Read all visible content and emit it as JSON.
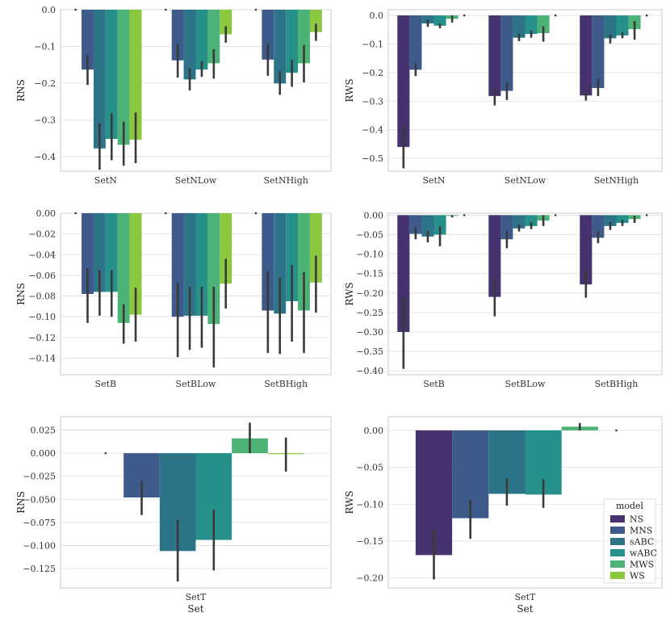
{
  "colors": {
    "NS": "#45326e",
    "MNS": "#3d5a8a",
    "sABC": "#2d7488",
    "wABC": "#26918a",
    "MWS": "#4db276",
    "WS": "#8cc83f"
  },
  "legend": {
    "title": "model",
    "entries": [
      "NS",
      "MNS",
      "sABC",
      "wABC",
      "MWS",
      "WS"
    ]
  },
  "chart_data": [
    {
      "type": "bar",
      "xlabel": "",
      "ylabel": "RNS",
      "ylim": [
        -0.44,
        0.0
      ],
      "yticks": [
        0.0,
        -0.1,
        -0.2,
        -0.3,
        -0.4
      ],
      "yticklabels": [
        "0.0",
        "−0.1",
        "−0.2",
        "−0.3",
        "−0.4"
      ],
      "categories": [
        "SetN",
        "SetNLow",
        "SetNHigh"
      ],
      "series": [
        {
          "name": "NS",
          "values": [
            0.0,
            0.0,
            0.0
          ],
          "err": [
            [
              0.0,
              0.0
            ],
            [
              0.0,
              0.0
            ],
            [
              0.0,
              0.0
            ]
          ]
        },
        {
          "name": "MNS",
          "values": [
            -0.163,
            -0.138,
            -0.136
          ],
          "err": [
            [
              -0.205,
              -0.122
            ],
            [
              -0.185,
              -0.093
            ],
            [
              -0.18,
              -0.092
            ]
          ]
        },
        {
          "name": "sABC",
          "values": [
            -0.378,
            -0.19,
            -0.201
          ],
          "err": [
            [
              -0.436,
              -0.31
            ],
            [
              -0.22,
              -0.16
            ],
            [
              -0.232,
              -0.168
            ]
          ]
        },
        {
          "name": "wABC",
          "values": [
            -0.352,
            -0.163,
            -0.172
          ],
          "err": [
            [
              -0.41,
              -0.282
            ],
            [
              -0.183,
              -0.14
            ],
            [
              -0.21,
              -0.136
            ]
          ]
        },
        {
          "name": "MWS",
          "values": [
            -0.368,
            -0.146,
            -0.146
          ],
          "err": [
            [
              -0.425,
              -0.305
            ],
            [
              -0.188,
              -0.108
            ],
            [
              -0.198,
              -0.096
            ]
          ]
        },
        {
          "name": "WS",
          "values": [
            -0.354,
            -0.067,
            -0.061
          ],
          "err": [
            [
              -0.418,
              -0.28
            ],
            [
              -0.09,
              -0.045
            ],
            [
              -0.085,
              -0.038
            ]
          ]
        }
      ]
    },
    {
      "type": "bar",
      "xlabel": "",
      "ylabel": "RWS",
      "ylim": [
        -0.545,
        0.02
      ],
      "yticks": [
        0.0,
        -0.1,
        -0.2,
        -0.3,
        -0.4,
        -0.5
      ],
      "yticklabels": [
        "0.0",
        "−0.1",
        "−0.2",
        "−0.3",
        "−0.4",
        "−0.5"
      ],
      "categories": [
        "SetN",
        "SetNLow",
        "SetNHigh"
      ],
      "series": [
        {
          "name": "NS",
          "values": [
            -0.46,
            -0.282,
            -0.28
          ],
          "err": [
            [
              -0.535,
              -0.385
            ],
            [
              -0.315,
              -0.252
            ],
            [
              -0.298,
              -0.26
            ]
          ]
        },
        {
          "name": "MNS",
          "values": [
            -0.19,
            -0.264,
            -0.254
          ],
          "err": [
            [
              -0.212,
              -0.168
            ],
            [
              -0.296,
              -0.234
            ],
            [
              -0.282,
              -0.222
            ]
          ]
        },
        {
          "name": "sABC",
          "values": [
            -0.028,
            -0.078,
            -0.08
          ],
          "err": [
            [
              -0.04,
              -0.015
            ],
            [
              -0.09,
              -0.064
            ],
            [
              -0.098,
              -0.066
            ]
          ]
        },
        {
          "name": "wABC",
          "values": [
            -0.036,
            -0.065,
            -0.07
          ],
          "err": [
            [
              -0.045,
              -0.028
            ],
            [
              -0.078,
              -0.052
            ],
            [
              -0.08,
              -0.058
            ]
          ]
        },
        {
          "name": "MWS",
          "values": [
            -0.012,
            -0.062,
            -0.048
          ],
          "err": [
            [
              -0.025,
              0.0
            ],
            [
              -0.092,
              -0.038
            ],
            [
              -0.085,
              -0.02
            ]
          ]
        },
        {
          "name": "WS",
          "values": [
            0.0,
            0.0,
            0.0
          ],
          "err": [
            [
              0.0,
              0.0
            ],
            [
              0.0,
              0.0
            ],
            [
              0.0,
              0.0
            ]
          ]
        }
      ]
    },
    {
      "type": "bar",
      "xlabel": "",
      "ylabel": "RNS",
      "ylim": [
        -0.156,
        0.0
      ],
      "yticks": [
        0.0,
        -0.02,
        -0.04,
        -0.06,
        -0.08,
        -0.1,
        -0.12,
        -0.14
      ],
      "yticklabels": [
        "0.00",
        "−0.02",
        "−0.04",
        "−0.06",
        "−0.08",
        "−0.10",
        "−0.12",
        "−0.14"
      ],
      "categories": [
        "SetB",
        "SetBLow",
        "SetBHigh"
      ],
      "series": [
        {
          "name": "NS",
          "values": [
            0.0,
            0.0,
            0.0
          ],
          "err": [
            [
              0.0,
              0.0
            ],
            [
              0.0,
              0.0
            ],
            [
              0.0,
              0.0
            ]
          ]
        },
        {
          "name": "MNS",
          "values": [
            -0.078,
            -0.1,
            -0.094
          ],
          "err": [
            [
              -0.106,
              -0.053
            ],
            [
              -0.139,
              -0.067
            ],
            [
              -0.135,
              -0.056
            ]
          ]
        },
        {
          "name": "sABC",
          "values": [
            -0.076,
            -0.099,
            -0.097
          ],
          "err": [
            [
              -0.099,
              -0.055
            ],
            [
              -0.132,
              -0.071
            ],
            [
              -0.136,
              -0.062
            ]
          ]
        },
        {
          "name": "wABC",
          "values": [
            -0.076,
            -0.099,
            -0.085
          ],
          "err": [
            [
              -0.1,
              -0.055
            ],
            [
              -0.13,
              -0.071
            ],
            [
              -0.124,
              -0.05
            ]
          ]
        },
        {
          "name": "MWS",
          "values": [
            -0.106,
            -0.107,
            -0.094
          ],
          "err": [
            [
              -0.126,
              -0.088
            ],
            [
              -0.149,
              -0.071
            ],
            [
              -0.135,
              -0.057
            ]
          ]
        },
        {
          "name": "WS",
          "values": [
            -0.098,
            -0.068,
            -0.067
          ],
          "err": [
            [
              -0.124,
              -0.072
            ],
            [
              -0.092,
              -0.044
            ],
            [
              -0.096,
              -0.041
            ]
          ]
        }
      ]
    },
    {
      "type": "bar",
      "xlabel": "",
      "ylabel": "RWS",
      "ylim": [
        -0.41,
        0.005
      ],
      "yticks": [
        0.0,
        -0.05,
        -0.1,
        -0.15,
        -0.2,
        -0.25,
        -0.3,
        -0.35,
        -0.4
      ],
      "yticklabels": [
        "0.00",
        "−0.05",
        "−0.10",
        "−0.15",
        "−0.20",
        "−0.25",
        "−0.30",
        "−0.35",
        "−0.40"
      ],
      "categories": [
        "SetB",
        "SetBLow",
        "SetBHigh"
      ],
      "series": [
        {
          "name": "NS",
          "values": [
            -0.3,
            -0.21,
            -0.178
          ],
          "err": [
            [
              -0.395,
              -0.21
            ],
            [
              -0.26,
              -0.16
            ],
            [
              -0.212,
              -0.14
            ]
          ]
        },
        {
          "name": "MNS",
          "values": [
            -0.048,
            -0.062,
            -0.058
          ],
          "err": [
            [
              -0.062,
              -0.03
            ],
            [
              -0.085,
              -0.04
            ],
            [
              -0.072,
              -0.042
            ]
          ]
        },
        {
          "name": "sABC",
          "values": [
            -0.055,
            -0.034,
            -0.028
          ],
          "err": [
            [
              -0.07,
              -0.04
            ],
            [
              -0.042,
              -0.024
            ],
            [
              -0.038,
              -0.018
            ]
          ]
        },
        {
          "name": "wABC",
          "values": [
            -0.05,
            -0.028,
            -0.02
          ],
          "err": [
            [
              -0.08,
              -0.028
            ],
            [
              -0.036,
              -0.018
            ],
            [
              -0.028,
              -0.012
            ]
          ]
        },
        {
          "name": "MWS",
          "values": [
            -0.002,
            -0.014,
            -0.01
          ],
          "err": [
            [
              -0.006,
              0.0
            ],
            [
              -0.028,
              0.0
            ],
            [
              -0.02,
              -0.002
            ]
          ]
        },
        {
          "name": "WS",
          "values": [
            0.0,
            0.0,
            0.0
          ],
          "err": [
            [
              0.0,
              0.0
            ],
            [
              0.0,
              0.0
            ],
            [
              0.0,
              0.0
            ]
          ]
        }
      ]
    },
    {
      "type": "bar",
      "xlabel": "Set",
      "ylabel": "RNS",
      "ylim": [
        -0.146,
        0.0395
      ],
      "yticks": [
        0.025,
        0.0,
        -0.025,
        -0.05,
        -0.075,
        -0.1,
        -0.125
      ],
      "yticklabels": [
        "0.025",
        "0.000",
        "−0.025",
        "−0.050",
        "−0.075",
        "−0.100",
        "−0.125"
      ],
      "categories": [
        "SetT"
      ],
      "series": [
        {
          "name": "NS",
          "values": [
            0.0
          ],
          "err": [
            [
              0.0,
              0.0
            ]
          ]
        },
        {
          "name": "MNS",
          "values": [
            -0.048
          ],
          "err": [
            [
              -0.067,
              -0.03
            ]
          ]
        },
        {
          "name": "sABC",
          "values": [
            -0.106
          ],
          "err": [
            [
              -0.139,
              -0.072
            ]
          ]
        },
        {
          "name": "wABC",
          "values": [
            -0.094
          ],
          "err": [
            [
              -0.127,
              -0.061
            ]
          ]
        },
        {
          "name": "MWS",
          "values": [
            0.016
          ],
          "err": [
            [
              0.0,
              0.033
            ]
          ]
        },
        {
          "name": "WS",
          "values": [
            -0.001
          ],
          "err": [
            [
              -0.02,
              0.017
            ]
          ]
        }
      ]
    },
    {
      "type": "bar",
      "xlabel": "Set",
      "ylabel": "RWS",
      "ylim": [
        -0.2135,
        0.0185
      ],
      "yticks": [
        0.0,
        -0.05,
        -0.1,
        -0.15,
        -0.2
      ],
      "yticklabels": [
        "0.00",
        "−0.05",
        "−0.10",
        "−0.15",
        "−0.20"
      ],
      "categories": [
        "SetT"
      ],
      "series": [
        {
          "name": "NS",
          "values": [
            -0.169
          ],
          "err": [
            [
              -0.202,
              -0.134
            ]
          ]
        },
        {
          "name": "MNS",
          "values": [
            -0.119
          ],
          "err": [
            [
              -0.147,
              -0.094
            ]
          ]
        },
        {
          "name": "sABC",
          "values": [
            -0.086
          ],
          "err": [
            [
              -0.102,
              -0.065
            ]
          ]
        },
        {
          "name": "wABC",
          "values": [
            -0.087
          ],
          "err": [
            [
              -0.105,
              -0.066
            ]
          ]
        },
        {
          "name": "MWS",
          "values": [
            0.005
          ],
          "err": [
            [
              0.0,
              0.01
            ]
          ]
        },
        {
          "name": "WS",
          "values": [
            0.0
          ],
          "err": [
            [
              0.0,
              0.0
            ]
          ]
        }
      ],
      "legend": true
    }
  ]
}
